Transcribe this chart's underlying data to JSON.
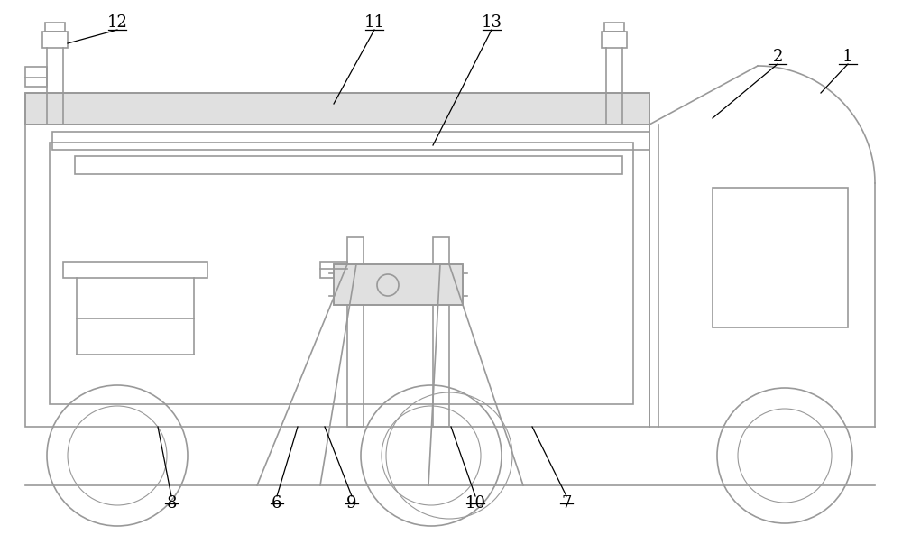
{
  "bg_color": "#ffffff",
  "line_color": "#999999",
  "label_color": "#000000",
  "fig_width": 10.0,
  "fig_height": 5.93,
  "dpi": 100
}
